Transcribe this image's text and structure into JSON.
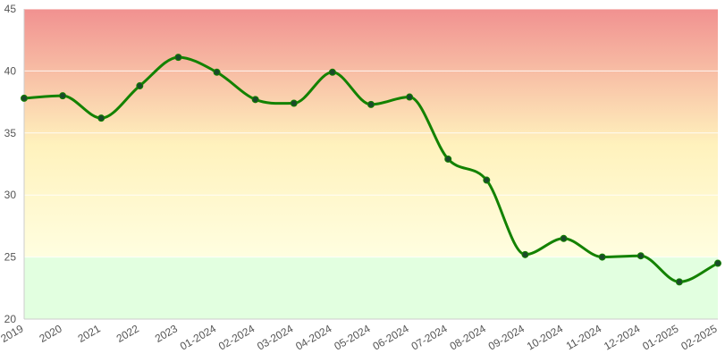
{
  "chart_data": {
    "type": "line",
    "title": "",
    "xlabel": "",
    "ylabel": "",
    "categories": [
      "2019",
      "2020",
      "2021",
      "2022",
      "2023",
      "01-2024",
      "02-2024",
      "03-2024",
      "04-2024",
      "05-2024",
      "06-2024",
      "07-2024",
      "08-2024",
      "09-2024",
      "10-2024",
      "11-2024",
      "12-2024",
      "01-2025",
      "02-2025"
    ],
    "series": [
      {
        "name": "",
        "color": "#138200",
        "values": [
          37.8,
          38.0,
          36.2,
          38.8,
          41.1,
          39.9,
          37.7,
          37.4,
          39.9,
          37.3,
          37.9,
          32.9,
          31.2,
          25.2,
          26.5,
          25.0,
          25.1,
          23.0,
          24.5
        ]
      }
    ],
    "ylim": [
      20,
      45
    ],
    "yticks": [
      20,
      25,
      30,
      35,
      40,
      45
    ],
    "grid": true,
    "legend": "none",
    "bands": [
      {
        "from": 25,
        "to": 45,
        "color_top": "#f19190",
        "color_mid": "#fff2bd",
        "color_bottom": "#fffee0"
      },
      {
        "from": 20,
        "to": 25,
        "color": "#e2ffe0"
      }
    ],
    "marker_color": "#1a4a2a"
  }
}
